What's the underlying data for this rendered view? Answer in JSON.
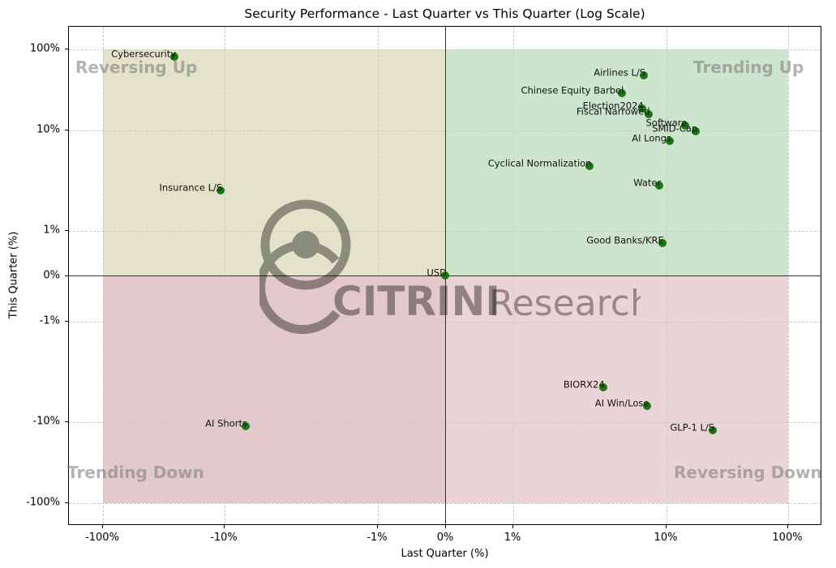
{
  "chart_data": {
    "type": "scatter",
    "title": "Security Performance - Last Quarter vs This Quarter (Log Scale)",
    "xlabel": "Last Quarter (%)",
    "ylabel": "This Quarter (%)",
    "xscale": "symlog",
    "yscale": "symlog",
    "xlim": [
      -300,
      300
    ],
    "ylim": [
      -300,
      300
    ],
    "grid": true,
    "xticks": [
      "-100%",
      "-10%",
      "-1%",
      "0%",
      "1%",
      "10%",
      "100%"
    ],
    "yticks": [
      "100%",
      "10%",
      "1%",
      "0%",
      "-1%",
      "-10%",
      "-100%"
    ],
    "quadrants": [
      {
        "name": "Reversing Up",
        "color": "#e2e3c9"
      },
      {
        "name": "Trending Up",
        "color": "#cde4cd"
      },
      {
        "name": "Trending Down",
        "color": "#e3c9cb"
      },
      {
        "name": "Reversing Down",
        "color": "#ebd4d5"
      }
    ],
    "points": [
      {
        "label": "Cybersecurity",
        "x": -25.5,
        "y": 79.0
      },
      {
        "label": "Insurance L/S",
        "x": -10.6,
        "y": 2.5
      },
      {
        "label": "AI Shorts",
        "x": -7.2,
        "y": -11.5
      },
      {
        "label": "USD",
        "x": 0.0,
        "y": 0.0
      },
      {
        "label": "Airlines L/S",
        "x": 7.2,
        "y": 46.8
      },
      {
        "label": "Chinese Equity Barbel",
        "x": 5.2,
        "y": 28.2
      },
      {
        "label": "Election2024",
        "x": 7.0,
        "y": 18.2
      },
      {
        "label": "Fiscal Narrowed",
        "x": 7.7,
        "y": 15.5
      },
      {
        "label": "Software",
        "x": 14.5,
        "y": 11.2
      },
      {
        "label": "SMID-Cap",
        "x": 17.7,
        "y": 9.6
      },
      {
        "label": "AI Longs",
        "x": 10.8,
        "y": 7.7
      },
      {
        "label": "Cyclical Normalization",
        "x": 3.2,
        "y": 4.3
      },
      {
        "label": "Water",
        "x": 9.1,
        "y": 2.8
      },
      {
        "label": "Good Banks/KRE",
        "x": 9.5,
        "y": 0.71
      },
      {
        "label": "BIORX24",
        "x": 3.9,
        "y": -4.6
      },
      {
        "label": "AI Win/Lose",
        "x": 7.6,
        "y": -7.0
      },
      {
        "label": "GLP-1 L/S",
        "x": 24.4,
        "y": -12.9
      }
    ],
    "point_color": "#1a7a12"
  },
  "watermark": {
    "brand_bold": "CITRINI",
    "brand_light": "Research"
  },
  "quadrant_labels": {
    "top_left": "Reversing Up",
    "top_right": "Trending Up",
    "bottom_left": "Trending Down",
    "bottom_right": "Reversing Down"
  }
}
